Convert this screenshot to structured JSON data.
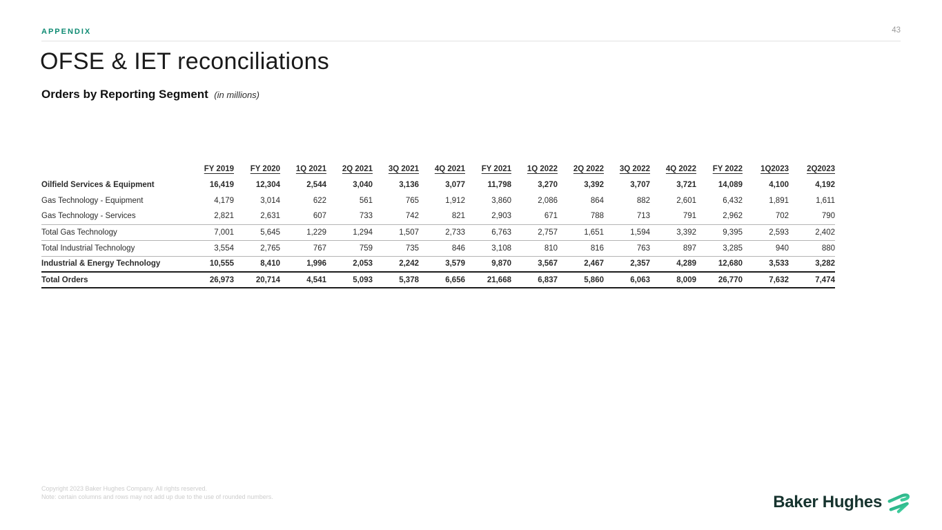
{
  "page": {
    "eyebrow": "APPENDIX",
    "page_number": "43",
    "title": "OFSE & IET reconciliations",
    "subtitle": "Orders by Reporting Segment",
    "subtitle_note": "(in millions)"
  },
  "table": {
    "columns": [
      "FY 2019",
      "FY 2020",
      "1Q 2021",
      "2Q 2021",
      "3Q 2021",
      "4Q 2021",
      "FY 2021",
      "1Q 2022",
      "2Q 2022",
      "3Q 2022",
      "4Q 2022",
      "FY 2022",
      "1Q2023",
      "2Q2023"
    ],
    "rows": [
      {
        "label": "Oilfield Services & Equipment",
        "bold": true,
        "indent": false,
        "accent": false,
        "border": "none",
        "values": [
          "16,419",
          "12,304",
          "2,544",
          "3,040",
          "3,136",
          "3,077",
          "11,798",
          "3,270",
          "3,392",
          "3,707",
          "3,721",
          "14,089",
          "4,100",
          "4,192"
        ]
      },
      {
        "label": "Gas Technology - Equipment",
        "bold": false,
        "indent": true,
        "accent": false,
        "border": "none",
        "values": [
          "4,179",
          "3,014",
          "622",
          "561",
          "765",
          "1,912",
          "3,860",
          "2,086",
          "864",
          "882",
          "2,601",
          "6,432",
          "1,891",
          "1,611"
        ]
      },
      {
        "label": "Gas Technology - Services",
        "bold": false,
        "indent": true,
        "accent": false,
        "border": "thin",
        "values": [
          "2,821",
          "2,631",
          "607",
          "733",
          "742",
          "821",
          "2,903",
          "671",
          "788",
          "713",
          "791",
          "2,962",
          "702",
          "790"
        ]
      },
      {
        "label": "Total Gas Technology",
        "bold": false,
        "indent": false,
        "accent": false,
        "border": "thin",
        "values": [
          "7,001",
          "5,645",
          "1,229",
          "1,294",
          "1,507",
          "2,733",
          "6,763",
          "2,757",
          "1,651",
          "1,594",
          "3,392",
          "9,395",
          "2,593",
          "2,402"
        ]
      },
      {
        "label": "Total Industrial Technology",
        "bold": false,
        "indent": false,
        "accent": false,
        "border": "thin",
        "values": [
          "3,554",
          "2,765",
          "767",
          "759",
          "735",
          "846",
          "3,108",
          "810",
          "816",
          "763",
          "897",
          "3,285",
          "940",
          "880"
        ]
      },
      {
        "label": "Industrial & Energy Technology",
        "bold": true,
        "indent": false,
        "accent": false,
        "border": "thick",
        "values": [
          "10,555",
          "8,410",
          "1,996",
          "2,053",
          "2,242",
          "3,579",
          "9,870",
          "3,567",
          "2,467",
          "2,357",
          "4,289",
          "12,680",
          "3,533",
          "3,282"
        ]
      },
      {
        "label": "Total Orders",
        "bold": true,
        "indent": false,
        "accent": true,
        "border": "thick",
        "values": [
          "26,973",
          "20,714",
          "4,541",
          "5,093",
          "5,378",
          "6,656",
          "21,668",
          "6,837",
          "5,860",
          "6,063",
          "8,009",
          "26,770",
          "7,632",
          "7,474"
        ]
      }
    ]
  },
  "footer": {
    "copyright": "Copyright 2023 Baker Hughes Company. All rights reserved.",
    "note": "Note: certain columns and rows may not add up due to the use of rounded numbers.",
    "logo_text": "Baker Hughes",
    "logo_icon": "double-chevron-icon"
  },
  "colors": {
    "accent_teal": "#0D8A72",
    "logo_dark": "#16332E",
    "logo_green_start": "#1FA57C",
    "logo_green_end": "#48D8A6",
    "thin_rule": "#B3B3B3",
    "thick_rule": "#1B1B1B",
    "header_rule": "#E2E2E2",
    "page_number_gray": "#9A9A9A",
    "footer_gray": "#CCCCCC"
  }
}
